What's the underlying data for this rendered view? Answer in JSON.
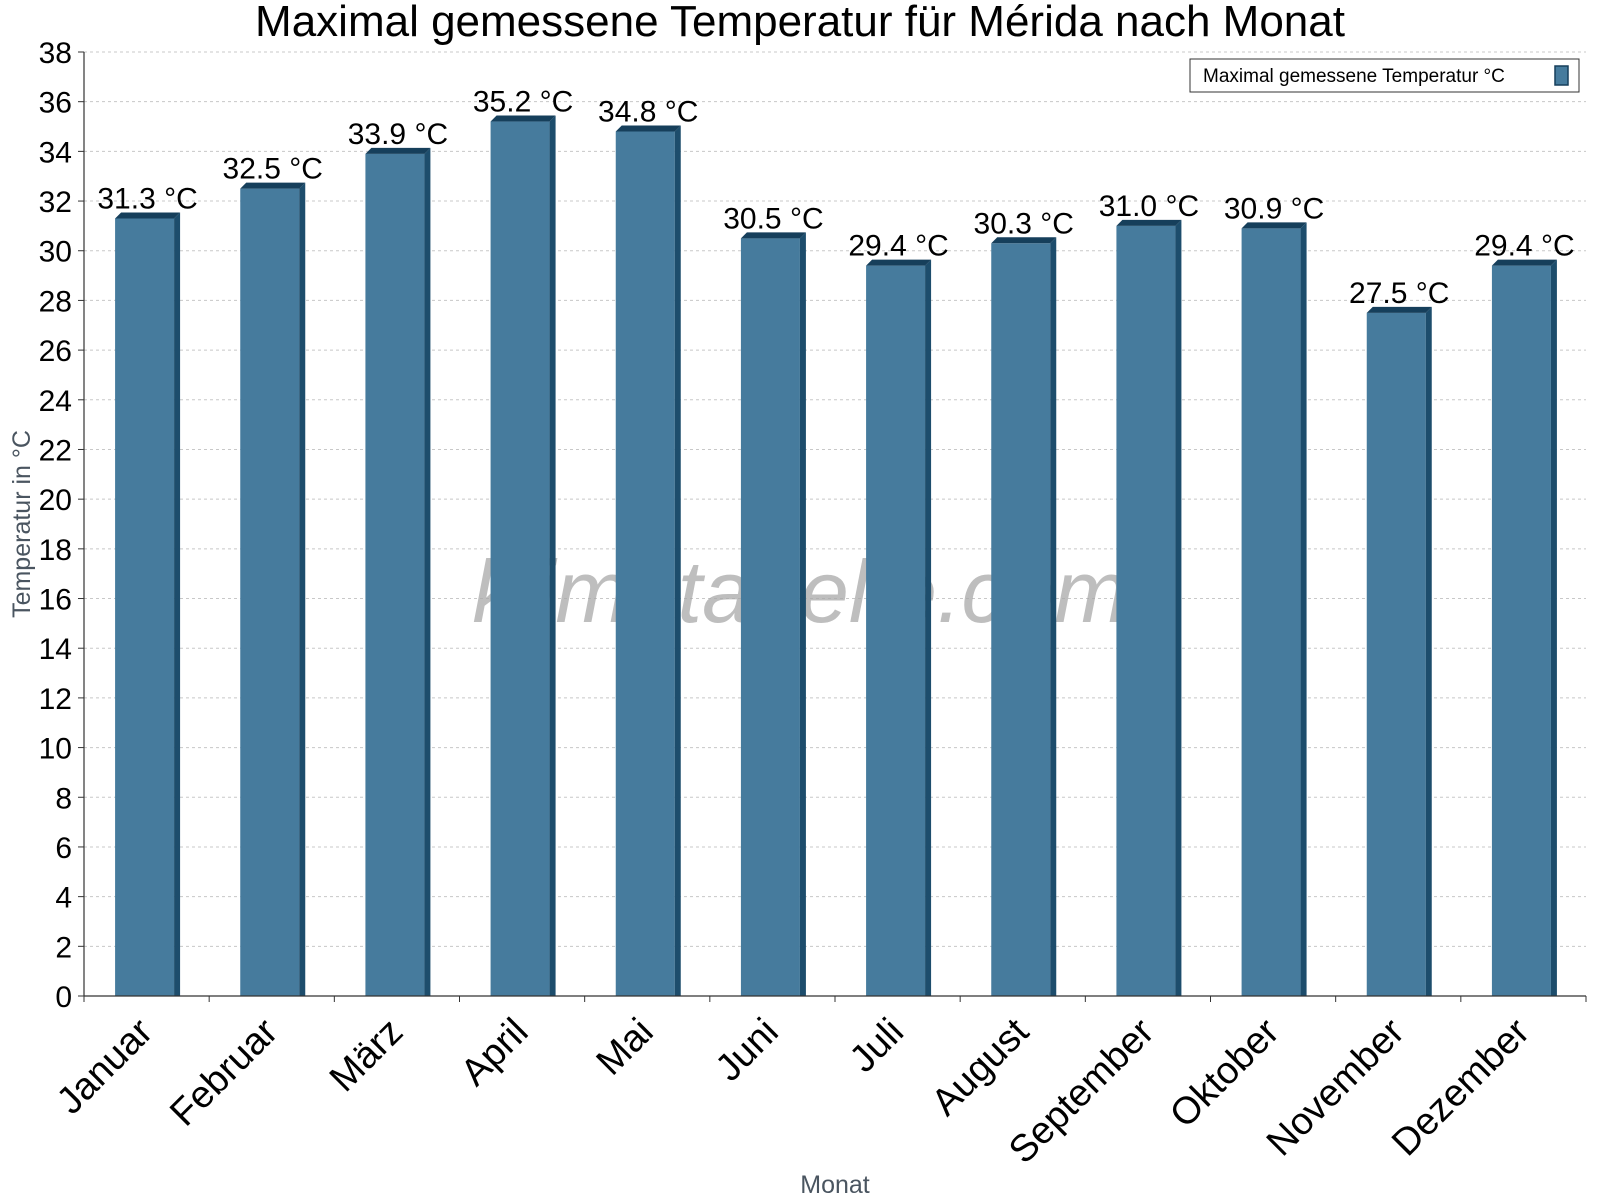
{
  "watermark": "klimatabelle.com",
  "colors": {
    "bar": "#467b9d",
    "bar_side": "#1d4d6c",
    "bar_top": "#163f5b"
  },
  "chart_data": {
    "type": "bar",
    "title": "Maximal gemessene Temperatur für Mérida nach Monat",
    "xlabel": "Monat",
    "ylabel": "Temperatur in °C",
    "ylim": [
      0,
      38
    ],
    "ytick_step": 2,
    "grid": true,
    "legend_position": "top-right",
    "categories": [
      "Januar",
      "Februar",
      "März",
      "April",
      "Mai",
      "Juni",
      "Juli",
      "August",
      "September",
      "Oktober",
      "November",
      "Dezember"
    ],
    "series": [
      {
        "name": "Maximal gemessene Temperatur °C",
        "values": [
          31.3,
          32.5,
          33.9,
          35.2,
          34.8,
          30.5,
          29.4,
          30.3,
          31.0,
          30.9,
          27.5,
          29.4
        ],
        "labels": [
          "31.3 °C",
          "32.5 °C",
          "33.9 °C",
          "35.2 °C",
          "34.8 °C",
          "30.5 °C",
          "29.4 °C",
          "30.3 °C",
          "31.0 °C",
          "30.9 °C",
          "27.5 °C",
          "29.4 °C"
        ]
      }
    ]
  }
}
